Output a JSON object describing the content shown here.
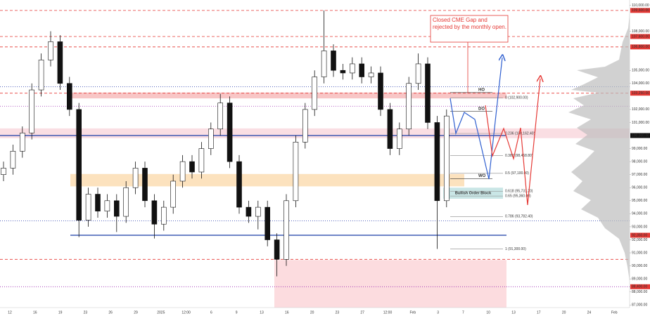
{
  "chart_data": {
    "type": "candlestick",
    "annotation": "Closed CME Gap and rejected by the monthly open.",
    "x_labels": [
      "12",
      "16",
      "19",
      "23",
      "26",
      "29",
      "2025",
      "12:00",
      "6",
      "9",
      "13",
      "16",
      "20",
      "23",
      "27",
      "12:00",
      "Feb",
      "3",
      "7",
      "10",
      "13",
      "17",
      "20",
      "24",
      "Feb"
    ],
    "ylim": [
      86800,
      110400
    ],
    "yticks": [
      {
        "value": 87000,
        "label": "87,000.00"
      },
      {
        "value": 88000,
        "label": "88,000.00"
      },
      {
        "value": 89000,
        "label": "89,000.00"
      },
      {
        "value": 90000,
        "label": "90,000.00"
      },
      {
        "value": 91000,
        "label": "91,000.00"
      },
      {
        "value": 92000,
        "label": "92,000.00"
      },
      {
        "value": 93000,
        "label": "93,000.00"
      },
      {
        "value": 94000,
        "label": "94,000.00"
      },
      {
        "value": 95000,
        "label": "95,000.00"
      },
      {
        "value": 96000,
        "label": "96,000.00"
      },
      {
        "value": 97000,
        "label": "97,000.00"
      },
      {
        "value": 98000,
        "label": "98,000.00"
      },
      {
        "value": 99000,
        "label": "99,000.00"
      },
      {
        "value": 101000,
        "label": "101,000.00"
      },
      {
        "value": 102000,
        "label": "102,000.00"
      },
      {
        "value": 104000,
        "label": "104,000.00"
      },
      {
        "value": 105000,
        "label": "105,000.00"
      },
      {
        "value": 108000,
        "label": "108,000.00"
      },
      {
        "value": 110000,
        "label": "110,000.00"
      }
    ],
    "up_color": "#ffffff",
    "down_color": "#111111",
    "candles": {
      "open": [
        97000,
        97500,
        98800,
        100200,
        103500,
        105800,
        107200,
        104000,
        102000,
        93500,
        95500,
        94200,
        95000,
        93800,
        96000,
        97500,
        95000,
        93200,
        94500,
        96500,
        98000,
        97200,
        99000,
        100500,
        102500,
        98000,
        94500,
        93800,
        94500,
        92000,
        90500,
        95000,
        99500,
        102000,
        104500,
        106500,
        105000,
        104800,
        105500,
        104500,
        104800,
        102000,
        99000,
        100500,
        104000,
        105500,
        101000,
        95000
      ],
      "high": [
        98000,
        99300,
        100700,
        104000,
        106300,
        108000,
        107700,
        104500,
        102500,
        96000,
        96000,
        95500,
        95500,
        96500,
        98000,
        98000,
        95500,
        95000,
        97000,
        98500,
        98500,
        99500,
        101000,
        103200,
        103000,
        98500,
        95000,
        95000,
        95000,
        92500,
        95500,
        100000,
        102500,
        105000,
        109600,
        107000,
        105500,
        106000,
        106000,
        105300,
        105300,
        102500,
        101000,
        104500,
        106300,
        106000,
        101500,
        102000
      ],
      "low": [
        96500,
        97000,
        98300,
        99700,
        103000,
        105300,
        103500,
        101500,
        92200,
        93000,
        93700,
        93700,
        92600,
        93300,
        95500,
        94500,
        92100,
        92700,
        94000,
        96000,
        96700,
        96700,
        98500,
        100000,
        97500,
        94000,
        93300,
        92800,
        91500,
        89200,
        90000,
        94500,
        99000,
        101500,
        104000,
        104500,
        104300,
        104300,
        104000,
        104000,
        101500,
        98500,
        98500,
        100000,
        103500,
        100500,
        91300,
        94500
      ],
      "close": [
        97500,
        98800,
        100200,
        103500,
        105800,
        107200,
        104000,
        102000,
        93500,
        95500,
        94200,
        95000,
        93800,
        96000,
        97500,
        95000,
        93200,
        94500,
        96500,
        98000,
        97200,
        99000,
        100500,
        102500,
        98000,
        94500,
        93800,
        94500,
        92000,
        90500,
        95000,
        99500,
        102000,
        104500,
        106500,
        105000,
        104800,
        105500,
        104500,
        104800,
        102000,
        99000,
        100500,
        104000,
        105500,
        101000,
        95000,
        101500
      ]
    },
    "zones": [
      {
        "from": 102850,
        "to": 103300,
        "color": "#f6b3b3"
      },
      {
        "from": 99800,
        "to": 100550,
        "color": "#f8d3da"
      },
      {
        "from": 96100,
        "to": 97050,
        "color": "#fbd8a8"
      },
      {
        "from": 95150,
        "to": 96000,
        "color": "#b7dede",
        "label": "Bullish Order Block"
      },
      {
        "from": 86800,
        "to": 90450,
        "color": "#fbd0d4"
      }
    ],
    "lines": [
      {
        "value": 100000,
        "color": "#1a3fa8",
        "style": "solid"
      },
      {
        "value": 92350,
        "color": "#1a3fa8",
        "style": "solid"
      },
      {
        "value": 109600,
        "color": "#e53935",
        "style": "dashed"
      },
      {
        "value": 107600,
        "color": "#e53935",
        "style": "dashed"
      },
      {
        "value": 106800,
        "color": "#e53935",
        "style": "dashed"
      },
      {
        "value": 103250,
        "color": "#e53935",
        "style": "dashed"
      },
      {
        "value": 90500,
        "color": "#e53935",
        "style": "dashed"
      },
      {
        "value": 103750,
        "color": "#3f51b5",
        "style": "dotted"
      },
      {
        "value": 102250,
        "color": "#9c27b0",
        "style": "dotted"
      },
      {
        "value": 93450,
        "color": "#3f51b5",
        "style": "dotted"
      },
      {
        "value": 88400,
        "color": "#9c27b0",
        "style": "dotted"
      }
    ],
    "levels": [
      {
        "label": "HO",
        "value": 103300
      },
      {
        "label": "DO",
        "value": 101850
      },
      {
        "label": "WO",
        "value": 96700
      }
    ],
    "fib": [
      {
        "value": 102900,
        "label": "0 (102,900.00)"
      },
      {
        "value": 100162.4,
        "label": "0.236 (100,162.40)"
      },
      {
        "value": 98468.8,
        "label": "0.382 (98,468.80)"
      },
      {
        "value": 97100,
        "label": "0.5 (97,100.00)"
      },
      {
        "value": 95731.2,
        "label": "0.618 (95,731.20)"
      },
      {
        "value": 95360,
        "label": "0.65 (95,360.00)"
      },
      {
        "value": 93782.4,
        "label": "0.786 (93,782.40)"
      },
      {
        "value": 91300,
        "label": "1 (91,300.00)"
      }
    ],
    "price_tags": [
      {
        "value": 109600,
        "label": "109,600.00",
        "color": "#e53935"
      },
      {
        "value": 107600,
        "label": "107,600.00",
        "color": "#e53935"
      },
      {
        "value": 106800,
        "label": "106,800.00",
        "color": "#e53935"
      },
      {
        "value": 103250,
        "label": "103,250.00",
        "color": "#e53935"
      },
      {
        "value": 100000,
        "label": "100,000.00",
        "color": "#111111"
      },
      {
        "value": 92350,
        "label": "92,350.00",
        "color": "#e53935"
      },
      {
        "value": 88400,
        "label": "88,400.00",
        "color": "#e53935"
      }
    ]
  }
}
